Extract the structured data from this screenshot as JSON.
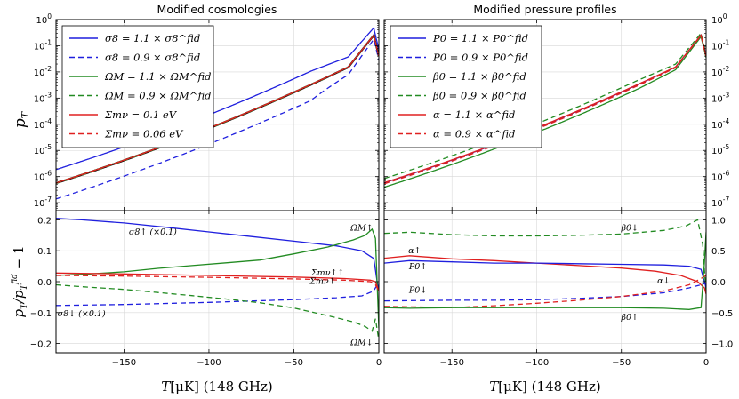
{
  "figure": {
    "left_title": "Modified cosmologies",
    "right_title": "Modified pressure profiles",
    "top_ylabel": "p_T",
    "bottom_ylabel": "p_T / p_T^fid − 1",
    "xlabel": "T [μK] (148 GHz)"
  },
  "chart_data": [
    {
      "type": "line",
      "panel": "top-left",
      "title": "Modified cosmologies",
      "ylabel": "p_T",
      "yscale": "log",
      "xlim": [
        -190,
        0
      ],
      "ylim": [
        5e-08,
        1
      ],
      "xticks": [
        -150,
        -100,
        -50,
        0
      ],
      "yticks": [
        "10^0",
        "10^-1",
        "10^-2",
        "10^-3",
        "10^-4",
        "10^-5",
        "10^-6",
        "10^-7"
      ],
      "legend": "top-left",
      "series": [
        {
          "name": "fiducial",
          "label": "",
          "color": "#000000",
          "dash": "solid",
          "ratio": 0
        },
        {
          "name": "sigma8-up",
          "label": "σ8 = 1.1 × σ8^fid",
          "color": "#1f1fde",
          "dash": "solid",
          "ratio": 2.3
        },
        {
          "name": "sigma8-down",
          "label": "σ8 = 0.9 × σ8^fid",
          "color": "#1f1fde",
          "dash": "dashed",
          "ratio": -0.75
        },
        {
          "name": "omegam-up",
          "label": "ΩM = 1.1 × ΩM^fid",
          "color": "#228b22",
          "dash": "solid",
          "ratio": 0.03
        },
        {
          "name": "omegam-down",
          "label": "ΩM = 0.9 × ΩM^fid",
          "color": "#228b22",
          "dash": "dashed",
          "ratio": -0.02
        },
        {
          "name": "mnu-01",
          "label": "Σmν = 0.1 eV",
          "color": "#e02020",
          "dash": "solid",
          "ratio": 0.02
        },
        {
          "name": "mnu-006",
          "label": "Σmν = 0.06 eV",
          "color": "#e02020",
          "dash": "dashed",
          "ratio": 0.015
        }
      ]
    },
    {
      "type": "line",
      "panel": "bottom-left",
      "xlabel": "T [μK] (148 GHz)",
      "ylabel": "p_T / p_T^fid − 1",
      "xlim": [
        -190,
        0
      ],
      "ylim": [
        -0.23,
        0.23
      ],
      "xticks": [
        -150,
        -100,
        -50,
        0
      ],
      "yticks": [
        -0.2,
        -0.1,
        0.0,
        0.1,
        0.2
      ],
      "series": [
        {
          "name": "sigma8-up-scaled",
          "color": "#1f1fde",
          "dash": "solid",
          "x": [
            -190,
            -175,
            -150,
            -125,
            -100,
            -75,
            -50,
            -25,
            -10,
            -3,
            -1,
            0
          ],
          "y": [
            0.205,
            0.2,
            0.19,
            0.176,
            0.161,
            0.146,
            0.131,
            0.116,
            0.1,
            0.075,
            0.0,
            -0.03
          ]
        },
        {
          "name": "sigma8-down-scaled",
          "color": "#1f1fde",
          "dash": "dashed",
          "x": [
            -190,
            -150,
            -100,
            -50,
            -25,
            -10,
            -3,
            0
          ],
          "y": [
            -0.077,
            -0.074,
            -0.067,
            -0.058,
            -0.052,
            -0.046,
            -0.03,
            0.0
          ]
        },
        {
          "name": "omegam-up",
          "color": "#228b22",
          "dash": "solid",
          "x": [
            -190,
            -170,
            -150,
            -130,
            -110,
            -90,
            -70,
            -50,
            -30,
            -15,
            -8,
            -4,
            -2,
            0
          ],
          "y": [
            0.02,
            0.025,
            0.032,
            0.043,
            0.052,
            0.061,
            0.07,
            0.09,
            0.112,
            0.135,
            0.15,
            0.17,
            0.14,
            -0.15
          ]
        },
        {
          "name": "omegam-down",
          "color": "#228b22",
          "dash": "dashed",
          "x": [
            -190,
            -170,
            -150,
            -130,
            -110,
            -90,
            -70,
            -50,
            -30,
            -15,
            -8,
            -4,
            -2,
            0
          ],
          "y": [
            -0.01,
            -0.018,
            -0.025,
            -0.035,
            -0.045,
            -0.056,
            -0.068,
            -0.085,
            -0.11,
            -0.13,
            -0.145,
            -0.16,
            -0.12,
            -0.19
          ]
        },
        {
          "name": "mnu-01",
          "color": "#e02020",
          "dash": "solid",
          "x": [
            -190,
            -150,
            -100,
            -50,
            -20,
            -5,
            -2,
            0
          ],
          "y": [
            0.028,
            0.025,
            0.02,
            0.015,
            0.01,
            0.005,
            0.0,
            -0.03
          ]
        },
        {
          "name": "mnu-006",
          "color": "#e02020",
          "dash": "dashed",
          "x": [
            -190,
            -150,
            -100,
            -50,
            -20,
            -5,
            -2,
            0
          ],
          "y": [
            0.02,
            0.018,
            0.014,
            0.009,
            0.005,
            0.0,
            -0.01,
            -0.03
          ]
        }
      ],
      "annotations": [
        {
          "text": "σ8↑ (×0.1)",
          "x": -133,
          "y": 0.152
        },
        {
          "text": "σ8↓ (×0.1)",
          "x": -175,
          "y": -0.112
        },
        {
          "text": "ΩM↑",
          "x": -10,
          "y": 0.165
        },
        {
          "text": "ΩM↓",
          "x": -10,
          "y": -0.205
        },
        {
          "text": "Σmν↑↑",
          "x": -30,
          "y": 0.02
        },
        {
          "text": "Σmν↑",
          "x": -33,
          "y": -0.007
        }
      ]
    },
    {
      "type": "line",
      "panel": "top-right",
      "title": "Modified pressure profiles",
      "yscale": "log",
      "xlim": [
        -190,
        0
      ],
      "ylim": [
        5e-08,
        1
      ],
      "xticks": [
        -150,
        -100,
        -50,
        0
      ],
      "yticks": [
        "10^0",
        "10^-1",
        "10^-2",
        "10^-3",
        "10^-4",
        "10^-5",
        "10^-6",
        "10^-7"
      ],
      "legend": "top-left",
      "series": [
        {
          "name": "p0-up",
          "label": "P0 = 1.1 × P0^fid",
          "color": "#1f1fde",
          "dash": "solid",
          "ratio": 0.03
        },
        {
          "name": "p0-down",
          "label": "P0 = 0.9 × P0^fid",
          "color": "#1f1fde",
          "dash": "dashed",
          "ratio": -0.03
        },
        {
          "name": "beta0-up",
          "label": "β0 = 1.1 × β0^fid",
          "color": "#228b22",
          "dash": "solid",
          "ratio": -0.3
        },
        {
          "name": "beta0-down",
          "label": "β0 = 0.9 × β0^fid",
          "color": "#228b22",
          "dash": "dashed",
          "ratio": 0.5
        },
        {
          "name": "alpha-up",
          "label": "α = 1.1 × α^fid",
          "color": "#e02020",
          "dash": "solid",
          "ratio": 0.05
        },
        {
          "name": "alpha-down",
          "label": "α = 0.9 × α^fid",
          "color": "#e02020",
          "dash": "dashed",
          "ratio": -0.06
        }
      ]
    },
    {
      "type": "line",
      "panel": "bottom-right",
      "xlabel": "T [μK] (148 GHz)",
      "xlim": [
        -190,
        0
      ],
      "ylim": [
        -1.15,
        1.15
      ],
      "xticks": [
        -150,
        -100,
        -50,
        0
      ],
      "yticks": [
        -1.0,
        -0.5,
        0.0,
        0.5,
        1.0
      ],
      "yaxis_side": "right",
      "series": [
        {
          "name": "beta0-down",
          "color": "#228b22",
          "dash": "dashed",
          "x": [
            -190,
            -175,
            -150,
            -125,
            -100,
            -75,
            -50,
            -25,
            -12,
            -5,
            -2,
            0
          ],
          "y": [
            0.78,
            0.8,
            0.76,
            0.74,
            0.74,
            0.75,
            0.77,
            0.83,
            0.9,
            1.0,
            0.6,
            -0.2
          ]
        },
        {
          "name": "alpha-up",
          "color": "#e02020",
          "dash": "solid",
          "x": [
            -190,
            -175,
            -150,
            -125,
            -100,
            -75,
            -50,
            -30,
            -15,
            -5,
            -1,
            0
          ],
          "y": [
            0.38,
            0.42,
            0.37,
            0.34,
            0.3,
            0.26,
            0.22,
            0.17,
            0.1,
            0.0,
            -0.1,
            -0.2
          ]
        },
        {
          "name": "p0-up",
          "color": "#1f1fde",
          "dash": "solid",
          "x": [
            -190,
            -175,
            -150,
            -125,
            -100,
            -75,
            -50,
            -25,
            -10,
            -3,
            0
          ],
          "y": [
            0.3,
            0.34,
            0.32,
            0.3,
            0.3,
            0.29,
            0.28,
            0.27,
            0.25,
            0.2,
            -0.1
          ]
        },
        {
          "name": "p0-down",
          "color": "#1f1fde",
          "dash": "dashed",
          "x": [
            -190,
            -150,
            -125,
            -100,
            -75,
            -50,
            -25,
            -10,
            -3,
            0
          ],
          "y": [
            -0.31,
            -0.3,
            -0.3,
            -0.29,
            -0.27,
            -0.24,
            -0.18,
            -0.1,
            -0.05,
            -0.02
          ]
        },
        {
          "name": "alpha-down",
          "color": "#e02020",
          "dash": "dashed",
          "x": [
            -190,
            -150,
            -125,
            -100,
            -75,
            -50,
            -25,
            -10,
            -3,
            0
          ],
          "y": [
            -0.4,
            -0.42,
            -0.39,
            -0.35,
            -0.3,
            -0.24,
            -0.15,
            -0.05,
            0.05,
            0.1
          ]
        },
        {
          "name": "beta0-up",
          "color": "#228b22",
          "dash": "solid",
          "x": [
            -190,
            -175,
            -150,
            -125,
            -100,
            -75,
            -50,
            -25,
            -10,
            -3,
            -1,
            0
          ],
          "y": [
            -0.42,
            -0.43,
            -0.42,
            -0.42,
            -0.42,
            -0.42,
            -0.42,
            -0.43,
            -0.45,
            -0.42,
            0.3,
            0.8
          ]
        }
      ],
      "annotations": [
        {
          "text": "β0↓",
          "x": -45,
          "y": 0.83
        },
        {
          "text": "α↑",
          "x": -172,
          "y": 0.46
        },
        {
          "text": "P0↑",
          "x": -170,
          "y": 0.2
        },
        {
          "text": "P0↓",
          "x": -170,
          "y": -0.18
        },
        {
          "text": "α↓",
          "x": -25,
          "y": -0.03
        },
        {
          "text": "β0↑",
          "x": -45,
          "y": -0.62
        }
      ]
    }
  ]
}
